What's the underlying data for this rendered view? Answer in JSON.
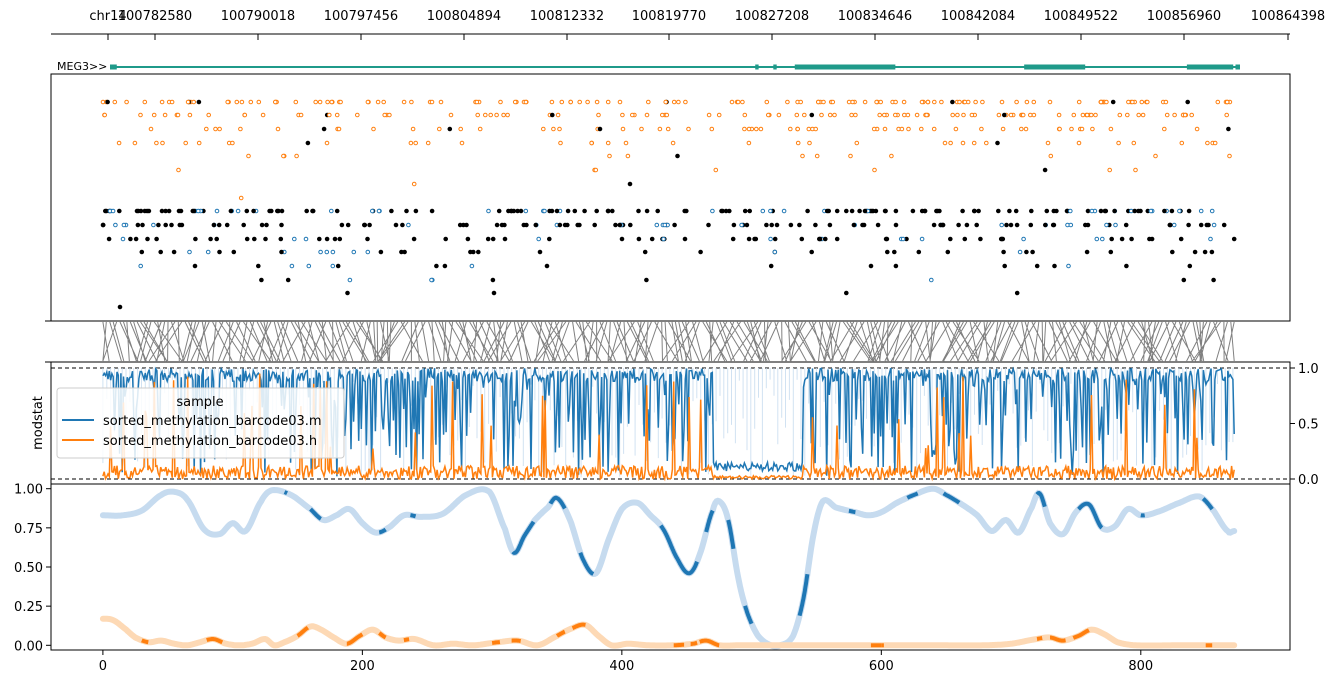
{
  "chart_data": [
    {
      "panel": "genomic-axis",
      "type": "axis",
      "chrom_label": "chr14",
      "tick_labels": [
        "100782580",
        "100790018",
        "100797456",
        "100804894",
        "100812332",
        "100819770",
        "100827208",
        "100834646",
        "100842084",
        "100849522",
        "100856960",
        "100864398"
      ]
    },
    {
      "panel": "gene-track",
      "type": "gene",
      "gene_label": "MEG3>>",
      "exons": [
        [
          0,
          0.006
        ],
        [
          0.571,
          0.574
        ],
        [
          0.587,
          0.59
        ],
        [
          0.606,
          0.695
        ],
        [
          0.809,
          0.863
        ],
        [
          0.953,
          0.994
        ],
        [
          0.996,
          1.0
        ]
      ],
      "color": "#1f9a8a"
    },
    {
      "panel": "read-track",
      "type": "scatter",
      "colors": {
        "modified_h": "#ff7f0e",
        "modified_m": "#1f77b4",
        "unmodified": "#000000"
      }
    },
    {
      "panel": "modstat",
      "type": "line",
      "ylabel": "modstat",
      "ylim": [
        0,
        1
      ],
      "y_ticks": [
        "0.0",
        "0.5",
        "1.0"
      ],
      "dashed_lines": [
        0,
        1
      ],
      "legend": {
        "title": "sample",
        "placement": "upper-left",
        "entries": [
          {
            "name": "sorted_methylation_barcode03.m",
            "color": "#1f77b4"
          },
          {
            "name": "sorted_methylation_barcode03.h",
            "color": "#ff7f0e"
          }
        ]
      }
    },
    {
      "panel": "smooth",
      "type": "line",
      "xlim": [
        -40,
        915
      ],
      "ylim": [
        -0.03,
        1.03
      ],
      "x_ticks": [
        "0",
        "200",
        "400",
        "600",
        "800"
      ],
      "y_ticks": [
        "0.00",
        "0.25",
        "0.50",
        "0.75",
        "1.00"
      ],
      "series": [
        {
          "name": "sorted_methylation_barcode03.m",
          "color": "#1f77b4",
          "light_color": "#c6dbef",
          "points": [
            [
              0,
              0.83
            ],
            [
              15,
              0.83
            ],
            [
              30,
              0.86
            ],
            [
              45,
              0.96
            ],
            [
              55,
              0.98
            ],
            [
              65,
              0.93
            ],
            [
              78,
              0.74
            ],
            [
              90,
              0.71
            ],
            [
              100,
              0.78
            ],
            [
              110,
              0.73
            ],
            [
              122,
              0.92
            ],
            [
              130,
              0.99
            ],
            [
              145,
              0.96
            ],
            [
              160,
              0.87
            ],
            [
              170,
              0.8
            ],
            [
              180,
              0.83
            ],
            [
              190,
              0.87
            ],
            [
              200,
              0.78
            ],
            [
              210,
              0.72
            ],
            [
              220,
              0.75
            ],
            [
              232,
              0.83
            ],
            [
              245,
              0.82
            ],
            [
              262,
              0.84
            ],
            [
              280,
              0.96
            ],
            [
              298,
              0.98
            ],
            [
              310,
              0.74
            ],
            [
              317,
              0.59
            ],
            [
              325,
              0.7
            ],
            [
              333,
              0.8
            ],
            [
              343,
              0.88
            ],
            [
              350,
              0.94
            ],
            [
              360,
              0.8
            ],
            [
              370,
              0.55
            ],
            [
              380,
              0.46
            ],
            [
              390,
              0.68
            ],
            [
              400,
              0.87
            ],
            [
              412,
              0.91
            ],
            [
              422,
              0.83
            ],
            [
              432,
              0.74
            ],
            [
              443,
              0.55
            ],
            [
              452,
              0.46
            ],
            [
              460,
              0.58
            ],
            [
              470,
              0.86
            ],
            [
              475,
              0.92
            ],
            [
              482,
              0.8
            ],
            [
              490,
              0.42
            ],
            [
              497,
              0.2
            ],
            [
              505,
              0.06
            ],
            [
              515,
              0.0
            ],
            [
              522,
              0.0
            ],
            [
              532,
              0.06
            ],
            [
              540,
              0.3
            ],
            [
              548,
              0.72
            ],
            [
              555,
              0.92
            ],
            [
              565,
              0.88
            ],
            [
              580,
              0.85
            ],
            [
              590,
              0.83
            ],
            [
              600,
              0.85
            ],
            [
              612,
              0.91
            ],
            [
              625,
              0.96
            ],
            [
              640,
              1.0
            ],
            [
              650,
              0.96
            ],
            [
              662,
              0.9
            ],
            [
              674,
              0.83
            ],
            [
              685,
              0.73
            ],
            [
              696,
              0.8
            ],
            [
              706,
              0.72
            ],
            [
              716,
              0.88
            ],
            [
              722,
              0.97
            ],
            [
              730,
              0.78
            ],
            [
              740,
              0.71
            ],
            [
              750,
              0.85
            ],
            [
              760,
              0.9
            ],
            [
              770,
              0.75
            ],
            [
              780,
              0.76
            ],
            [
              790,
              0.87
            ],
            [
              800,
              0.83
            ],
            [
              812,
              0.85
            ],
            [
              830,
              0.91
            ],
            [
              845,
              0.95
            ],
            [
              855,
              0.87
            ],
            [
              867,
              0.73
            ],
            [
              872,
              0.73
            ]
          ],
          "dark_segments": [
            [
              140,
              142
            ],
            [
              160,
              168
            ],
            [
              213,
              218
            ],
            [
              237,
              241
            ],
            [
              316,
              332
            ],
            [
              345,
              356
            ],
            [
              368,
              378
            ],
            [
              430,
              458
            ],
            [
              465,
              470
            ],
            [
              482,
              486
            ],
            [
              495,
              500
            ],
            [
              537,
              543
            ],
            [
              575,
              580
            ],
            [
              620,
              628
            ],
            [
              648,
              660
            ],
            [
              720,
              726
            ],
            [
              752,
              770
            ],
            [
              800,
              803
            ],
            [
              848,
              855
            ]
          ]
        },
        {
          "name": "sorted_methylation_barcode03.h",
          "color": "#ff7f0e",
          "light_color": "#fdd9b5",
          "points": [
            [
              0,
              0.17
            ],
            [
              8,
              0.16
            ],
            [
              18,
              0.1
            ],
            [
              25,
              0.05
            ],
            [
              35,
              0.02
            ],
            [
              45,
              0.03
            ],
            [
              55,
              0.01
            ],
            [
              65,
              0.0
            ],
            [
              75,
              0.02
            ],
            [
              85,
              0.04
            ],
            [
              95,
              0.01
            ],
            [
              105,
              0.0
            ],
            [
              115,
              0.01
            ],
            [
              125,
              0.04
            ],
            [
              132,
              0.0
            ],
            [
              140,
              0.02
            ],
            [
              150,
              0.06
            ],
            [
              160,
              0.12
            ],
            [
              168,
              0.1
            ],
            [
              178,
              0.05
            ],
            [
              188,
              0.01
            ],
            [
              198,
              0.06
            ],
            [
              208,
              0.1
            ],
            [
              218,
              0.05
            ],
            [
              228,
              0.03
            ],
            [
              240,
              0.04
            ],
            [
              255,
              0.0
            ],
            [
              270,
              0.01
            ],
            [
              285,
              0.0
            ],
            [
              305,
              0.02
            ],
            [
              320,
              0.03
            ],
            [
              335,
              0.0
            ],
            [
              350,
              0.06
            ],
            [
              362,
              0.11
            ],
            [
              372,
              0.13
            ],
            [
              382,
              0.06
            ],
            [
              392,
              0.0
            ],
            [
              405,
              0.01
            ],
            [
              420,
              0.0
            ],
            [
              440,
              0.0
            ],
            [
              455,
              0.01
            ],
            [
              465,
              0.03
            ],
            [
              475,
              0.0
            ],
            [
              490,
              0.0
            ],
            [
              520,
              0.0
            ],
            [
              560,
              0.0
            ],
            [
              600,
              0.0
            ],
            [
              640,
              0.0
            ],
            [
              680,
              0.0
            ],
            [
              700,
              0.01
            ],
            [
              720,
              0.04
            ],
            [
              730,
              0.05
            ],
            [
              740,
              0.03
            ],
            [
              752,
              0.06
            ],
            [
              762,
              0.1
            ],
            [
              772,
              0.07
            ],
            [
              782,
              0.02
            ],
            [
              795,
              0.0
            ],
            [
              830,
              0.0
            ],
            [
              872,
              0.0
            ]
          ],
          "dark_segments": [
            [
              30,
              35
            ],
            [
              80,
              92
            ],
            [
              150,
              158
            ],
            [
              188,
              200
            ],
            [
              213,
              218
            ],
            [
              232,
              236
            ],
            [
              300,
              306
            ],
            [
              315,
              322
            ],
            [
              350,
              356
            ],
            [
              362,
              372
            ],
            [
              440,
              448
            ],
            [
              453,
              458
            ],
            [
              460,
              475
            ],
            [
              592,
              600
            ],
            [
              600,
              602
            ],
            [
              720,
              724
            ],
            [
              730,
              742
            ],
            [
              748,
              760
            ],
            [
              850,
              855
            ]
          ]
        }
      ]
    }
  ]
}
